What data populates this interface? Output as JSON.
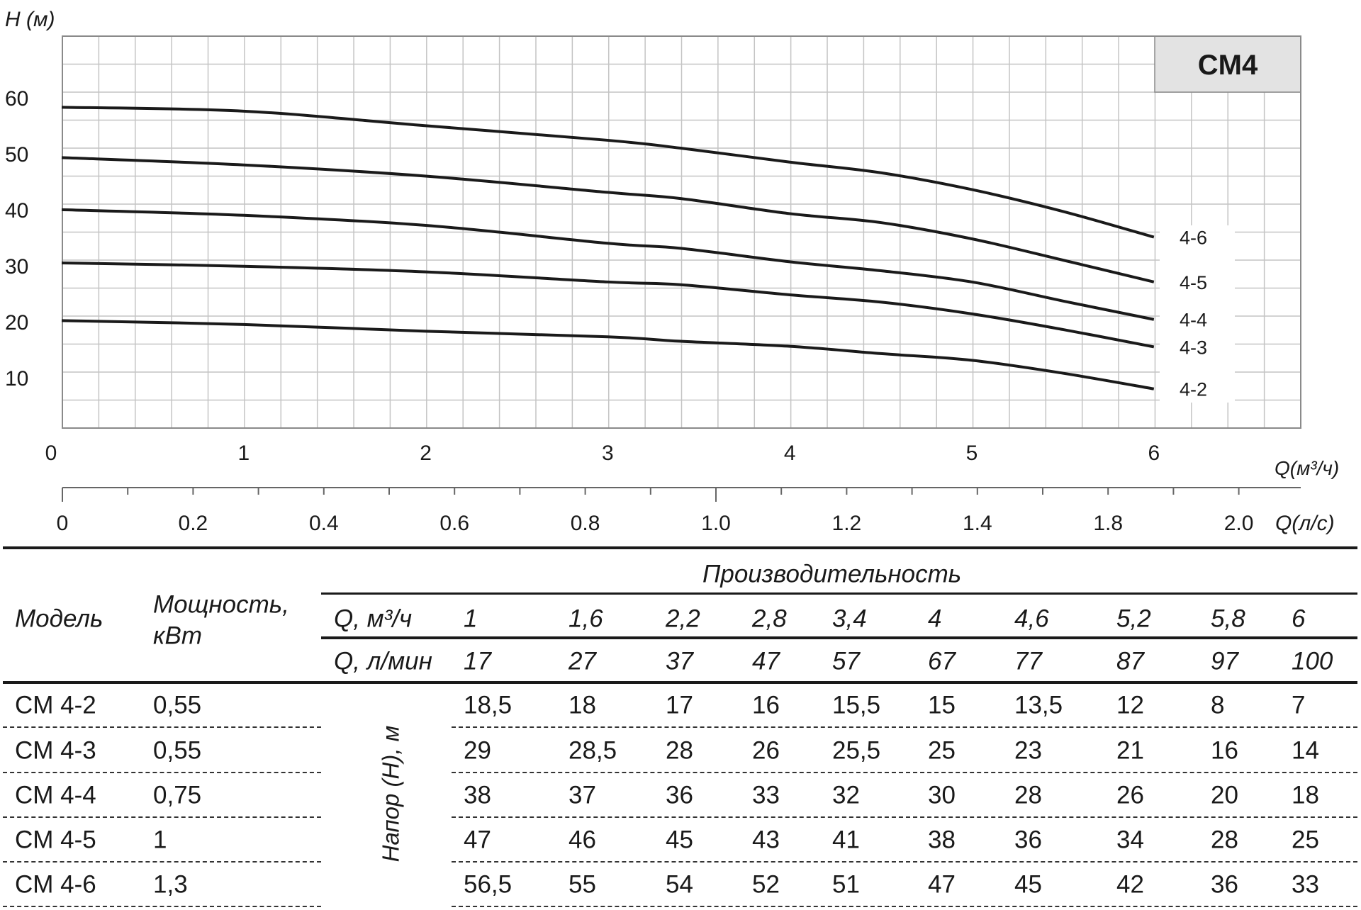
{
  "chart_data": {
    "type": "line",
    "title": "CM4",
    "ylabel": "H (м)",
    "xlabel": "Q(м³/ч)",
    "xlabel2": "Q(л/с)",
    "xlim": [
      0,
      6.8
    ],
    "ylim": [
      0,
      70
    ],
    "grid": true,
    "x_ticks": [
      "0",
      "1",
      "2",
      "3",
      "4",
      "5",
      "6"
    ],
    "y_ticks": [
      "10",
      "20",
      "30",
      "40",
      "50",
      "60"
    ],
    "x2_ticks": [
      "0",
      "0.2",
      "0.4",
      "0.6",
      "0.8",
      "1.0",
      "1.2",
      "1.4",
      "1.8",
      "2.0"
    ],
    "x": [
      0,
      1,
      2,
      3,
      3.4,
      4,
      4.5,
      5,
      5.5,
      6
    ],
    "series": [
      {
        "name": "4-6",
        "values": [
          57.3,
          56.6,
          54.0,
          51.4,
          50.0,
          47.5,
          45.6,
          42.6,
          38.7,
          34.1
        ]
      },
      {
        "name": "4-5",
        "values": [
          48.3,
          47.0,
          45.0,
          42.1,
          41.0,
          38.3,
          36.7,
          33.8,
          30.0,
          26.1
        ]
      },
      {
        "name": "4-4",
        "values": [
          39.0,
          38.0,
          36.2,
          33.0,
          32.1,
          29.7,
          28.1,
          26.1,
          22.7,
          19.4
        ]
      },
      {
        "name": "4-3",
        "values": [
          29.5,
          28.9,
          27.9,
          26.1,
          25.6,
          23.8,
          22.5,
          20.4,
          17.6,
          14.5
        ]
      },
      {
        "name": "4-2",
        "values": [
          19.2,
          18.5,
          17.3,
          16.3,
          15.5,
          14.6,
          13.3,
          12.1,
          9.8,
          7.0
        ]
      }
    ],
    "colors": {
      "line": "#1a1a1a",
      "grid": "#c4c4c4",
      "frame": "#8a8a8a",
      "title_bg": "#e3e3e3"
    }
  },
  "table": {
    "group_header": "Производительность",
    "col_model": "Модель",
    "col_power_1": "Мощность,",
    "col_power_2": "кВт",
    "q_m3h_label": "Q, м³/ч",
    "q_lmin_label": "Q, л/мин",
    "head_label": "Напор (Н), м",
    "q_m3h": [
      "1",
      "1,6",
      "2,2",
      "2,8",
      "3,4",
      "4",
      "4,6",
      "5,2",
      "5,8",
      "6"
    ],
    "q_lmin": [
      "17",
      "27",
      "37",
      "47",
      "57",
      "67",
      "77",
      "87",
      "97",
      "100"
    ],
    "rows": [
      {
        "model": "CM 4-2",
        "power": "0,55",
        "values": [
          "18,5",
          "18",
          "17",
          "16",
          "15,5",
          "15",
          "13,5",
          "12",
          "8",
          "7"
        ]
      },
      {
        "model": "CM 4-3",
        "power": "0,55",
        "values": [
          "29",
          "28,5",
          "28",
          "26",
          "25,5",
          "25",
          "23",
          "21",
          "16",
          "14"
        ]
      },
      {
        "model": "CM 4-4",
        "power": "0,75",
        "values": [
          "38",
          "37",
          "36",
          "33",
          "32",
          "30",
          "28",
          "26",
          "20",
          "18"
        ]
      },
      {
        "model": "CM 4-5",
        "power": "1",
        "values": [
          "47",
          "46",
          "45",
          "43",
          "41",
          "38",
          "36",
          "34",
          "28",
          "25"
        ]
      },
      {
        "model": "CM 4-6",
        "power": "1,3",
        "values": [
          "56,5",
          "55",
          "54",
          "52",
          "51",
          "47",
          "45",
          "42",
          "36",
          "33"
        ]
      }
    ]
  }
}
